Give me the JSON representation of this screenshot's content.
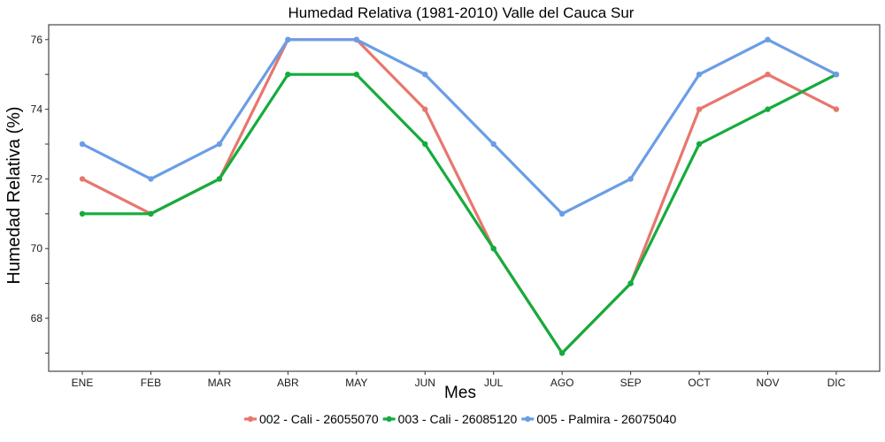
{
  "chart_data": {
    "type": "line",
    "title": "Humedad Relativa (1981-2010)  Valle del Cauca Sur",
    "xlabel": "Mes",
    "ylabel": "Humedad Relativa  (%)",
    "categories": [
      "ENE",
      "FEB",
      "MAR",
      "ABR",
      "MAY",
      "JUN",
      "JUL",
      "AGO",
      "SEP",
      "OCT",
      "NOV",
      "DIC"
    ],
    "ylim": [
      66.6,
      76.4
    ],
    "yticks": [
      68,
      70,
      72,
      74,
      76
    ],
    "grid": false,
    "legend_position": "bottom",
    "series": [
      {
        "name": "002 - Cali - 26055070",
        "color": "#E8766D",
        "values": [
          72,
          71,
          72,
          76,
          76,
          74,
          70,
          67,
          69,
          74,
          75,
          74
        ]
      },
      {
        "name": "003 - Cali - 26085120",
        "color": "#14AC3C",
        "values": [
          71,
          71,
          72,
          75,
          75,
          73,
          70,
          67,
          69,
          73,
          74,
          75
        ]
      },
      {
        "name": "005 - Palmira - 26075040",
        "color": "#6A9DE6",
        "values": [
          73,
          72,
          73,
          76,
          76,
          75,
          73,
          71,
          72,
          75,
          76,
          75
        ]
      }
    ]
  }
}
